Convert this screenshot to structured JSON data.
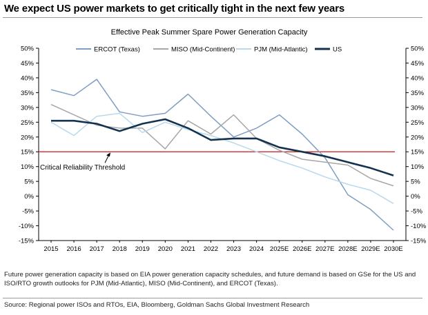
{
  "headline": "We expect US power markets to get critically tight in the next few years",
  "footnote": "Future power generation capacity is based on EIA power generation capacity schedules, and future demand is based on GSe for the US and ISO/RTO growth outlooks for PJM (Mid-Atlantic), MISO (Mid-Continent), and ERCOT (Texas).",
  "source": "Source: Regional power ISOs and RTOs, EIA, Bloomberg, Goldman Sachs Global Investment Research",
  "chart_data": {
    "type": "line",
    "title": "Effective Peak Summer Spare Power Generation Capacity",
    "categories": [
      "2015",
      "2016",
      "2017",
      "2018",
      "2019",
      "2020",
      "2021",
      "2022",
      "2023",
      "2024",
      "2025E",
      "2026E",
      "2027E",
      "2028E",
      "2029E",
      "2030E"
    ],
    "ylim": [
      -15,
      50
    ],
    "y_ticks": [
      50,
      45,
      40,
      35,
      30,
      25,
      20,
      15,
      10,
      5,
      0,
      -5,
      -10,
      -15
    ],
    "y_tick_labels": [
      "50%",
      "45%",
      "40%",
      "35%",
      "30%",
      "25%",
      "20%",
      "15%",
      "10%",
      "5%",
      "0%",
      "-5%",
      "-10%",
      "-15%"
    ],
    "legend_position": "top",
    "grid": false,
    "series": [
      {
        "name": "ERCOT (Texas)",
        "color": "#7d9ec2",
        "width": 1.5,
        "values": [
          36.0,
          34.0,
          39.5,
          28.5,
          27.0,
          28.0,
          34.5,
          27.0,
          20.0,
          23.0,
          27.5,
          21.0,
          13.0,
          0.5,
          -4.5,
          -11.5
        ]
      },
      {
        "name": "MISO (Mid-Continent)",
        "color": "#a6a6a6",
        "width": 1.5,
        "values": [
          31.0,
          27.5,
          24.0,
          23.0,
          23.0,
          16.0,
          25.5,
          21.0,
          27.5,
          19.5,
          15.5,
          12.5,
          11.5,
          10.5,
          6.0,
          3.5
        ]
      },
      {
        "name": "PJM (Mid-Atlantic)",
        "color": "#b8d8ec",
        "width": 1.5,
        "values": [
          25.0,
          20.5,
          27.0,
          28.0,
          21.5,
          25.0,
          22.5,
          20.5,
          18.0,
          15.0,
          12.0,
          9.5,
          6.5,
          4.0,
          2.0,
          -2.5
        ]
      },
      {
        "name": "US",
        "color": "#12324f",
        "width": 2.6,
        "values": [
          25.5,
          25.5,
          24.5,
          22.0,
          24.5,
          26.0,
          23.0,
          19.0,
          19.5,
          19.5,
          16.5,
          15.0,
          13.5,
          11.5,
          9.5,
          7.0
        ]
      }
    ],
    "threshold": {
      "value": 15,
      "color": "#cc2a2a",
      "label": "Critical Reliability Threshold"
    }
  }
}
